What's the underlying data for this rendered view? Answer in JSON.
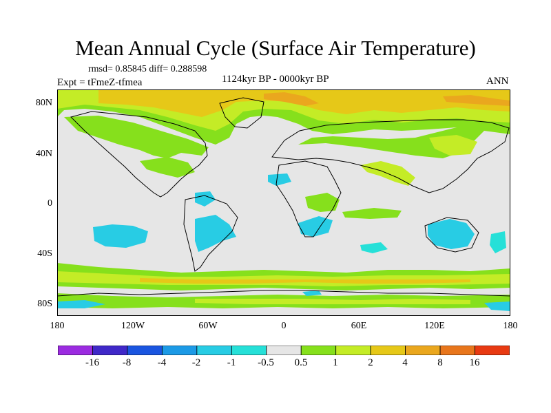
{
  "title": "Mean Annual Cycle (Surface Air Temperature)",
  "stats": "rmsd= 0.85845 diff= 0.288598",
  "period": "1124kyr BP - 0000kyr BP",
  "expt": "Expt = tFmeZ-tfmea",
  "season": "ANN",
  "lat_ticks": [
    "80N",
    "40N",
    "0",
    "40S",
    "80S"
  ],
  "lon_ticks": [
    "180",
    "120W",
    "60W",
    "0",
    "60E",
    "120E",
    "180"
  ],
  "colorbar": {
    "colors": [
      "#9b2be0",
      "#3f28c8",
      "#1a55e0",
      "#1c9ae6",
      "#28cce4",
      "#26e0d8",
      "#e6e6e6",
      "#86e01c",
      "#c4ec26",
      "#e6c818",
      "#eaa71e",
      "#e8761c",
      "#e83a12"
    ],
    "labels": [
      "-16",
      "-8",
      "-4",
      "-2",
      "-1",
      "-0.5",
      "0.5",
      "1",
      "2",
      "4",
      "8",
      "16"
    ]
  },
  "palette": {
    "neutral": "#e6e6e6",
    "green": "#86e01c",
    "yellowgreen": "#c4ec26",
    "yellow": "#e6c818",
    "orange": "#eaa71e",
    "lightblue": "#26e0d8",
    "cyan": "#28cce4"
  }
}
